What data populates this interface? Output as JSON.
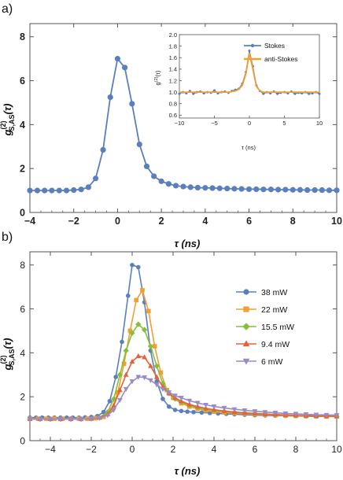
{
  "colors": {
    "blue": "#5b7fbd",
    "orange": "#f0a030",
    "green": "#86bf3a",
    "red": "#e8603a",
    "purple": "#9a8ac6",
    "axis": "#555555"
  },
  "chart_data": [
    {
      "panel_label": "a)",
      "type": "line",
      "xlabel": "τ (ns)",
      "ylabel": "g(2)S,AS(τ)",
      "xlim": [
        -4,
        10
      ],
      "ylim": [
        0,
        8.6
      ],
      "xticks": [
        -4,
        -2,
        0,
        2,
        4,
        6,
        8,
        10
      ],
      "yticks": [
        0,
        2,
        4,
        6,
        8
      ],
      "grid": false,
      "series": [
        {
          "marker": "circle",
          "color": "#5b7fbd",
          "x": [
            -4,
            -3.66,
            -3.33,
            -3,
            -2.66,
            -2.33,
            -2,
            -1.66,
            -1.33,
            -1,
            -0.66,
            -0.33,
            0,
            0.33,
            0.66,
            1,
            1.33,
            1.66,
            2,
            2.33,
            2.66,
            3,
            3.33,
            3.66,
            4,
            4.33,
            4.66,
            5,
            5.33,
            5.66,
            6,
            6.33,
            6.66,
            7,
            7.33,
            7.66,
            8,
            8.33,
            8.66,
            9,
            9.33,
            9.66,
            10
          ],
          "y": [
            1.0,
            1.0,
            1.0,
            1.0,
            1.0,
            1.0,
            1.02,
            1.05,
            1.15,
            1.55,
            2.85,
            5.25,
            7.0,
            6.6,
            4.95,
            3.1,
            2.1,
            1.65,
            1.42,
            1.3,
            1.22,
            1.18,
            1.15,
            1.13,
            1.12,
            1.11,
            1.1,
            1.09,
            1.08,
            1.07,
            1.06,
            1.06,
            1.05,
            1.05,
            1.04,
            1.04,
            1.03,
            1.03,
            1.02,
            1.02,
            1.02,
            1.01,
            1.01
          ]
        }
      ],
      "inset": {
        "type": "line",
        "xlabel": "τ (ns)",
        "ylabel": "g(2)(τ)",
        "xlim": [
          -10,
          10
        ],
        "ylim": [
          0.55,
          2.0
        ],
        "xticks": [
          -10,
          -5,
          0,
          5,
          10
        ],
        "yticks": [
          0.6,
          0.8,
          1.0,
          1.2,
          1.4,
          1.6,
          1.8,
          2.0
        ],
        "legend_position": "top-right",
        "series": [
          {
            "name": "Stokes",
            "color": "#5b7fbd",
            "marker": "circle",
            "x": [
              -10,
              -9.5,
              -9,
              -8.5,
              -8,
              -7.5,
              -7,
              -6.5,
              -6,
              -5.5,
              -5,
              -4.5,
              -4,
              -3.5,
              -3,
              -2.5,
              -2,
              -1.5,
              -1,
              -0.5,
              0,
              0.5,
              1,
              1.5,
              2,
              2.5,
              3,
              3.5,
              4,
              4.5,
              5,
              5.5,
              6,
              6.5,
              7,
              7.5,
              8,
              8.5,
              9,
              9.5,
              10
            ],
            "y": [
              0.97,
              1.0,
              0.98,
              1.02,
              0.97,
              1.0,
              1.01,
              0.98,
              1.0,
              0.99,
              1.03,
              0.98,
              1.0,
              1.01,
              0.99,
              1.02,
              1.04,
              1.06,
              1.15,
              1.35,
              1.72,
              1.45,
              1.12,
              1.02,
              0.97,
              1.0,
              0.98,
              1.01,
              0.97,
              0.99,
              1.0,
              0.98,
              1.01,
              0.97,
              0.99,
              0.98,
              1.0,
              0.97,
              0.98,
              1.0,
              0.97
            ]
          },
          {
            "name": "anti-Stokes",
            "color": "#f0a030",
            "marker": "none",
            "x": [
              -10,
              -9,
              -8,
              -7,
              -6,
              -5,
              -4,
              -3,
              -2,
              -1.5,
              -1,
              -0.5,
              0,
              0.5,
              1,
              1.5,
              2,
              3,
              4,
              5,
              6,
              7,
              8,
              9,
              10
            ],
            "y": [
              1.0,
              1.0,
              1.0,
              1.0,
              1.0,
              1.0,
              1.0,
              1.0,
              1.02,
              1.05,
              1.12,
              1.32,
              1.68,
              1.4,
              1.1,
              1.02,
              1.0,
              1.0,
              1.0,
              1.0,
              1.0,
              1.0,
              1.0,
              1.0,
              1.0
            ]
          }
        ]
      }
    },
    {
      "panel_label": "b)",
      "type": "line",
      "xlabel": "τ (ns)",
      "ylabel": "g(2)S,AS(τ)",
      "xlim": [
        -5,
        10
      ],
      "ylim": [
        0,
        8.6
      ],
      "xticks": [
        -4,
        -2,
        0,
        2,
        4,
        6,
        8,
        10
      ],
      "yticks": [
        0,
        2,
        4,
        6,
        8
      ],
      "grid": false,
      "legend_position": "right",
      "series": [
        {
          "name": "38 mW",
          "color": "#5b7fbd",
          "marker": "circle",
          "x": [
            -5,
            -4.7,
            -4.4,
            -4.1,
            -3.8,
            -3.5,
            -3.2,
            -2.9,
            -2.6,
            -2.3,
            -2.0,
            -1.7,
            -1.4,
            -1.1,
            -0.8,
            -0.5,
            -0.2,
            0.0,
            0.3,
            0.6,
            0.9,
            1.2,
            1.5,
            1.8,
            2.1,
            2.4,
            2.7,
            3.0,
            3.4,
            3.8,
            4.2,
            4.6,
            5.0,
            5.5,
            6.0,
            6.5,
            7.0,
            7.5,
            8.0,
            8.5,
            9.0,
            9.5,
            10.0
          ],
          "y": [
            1.05,
            1.05,
            1.05,
            1.05,
            1.05,
            1.05,
            1.05,
            1.05,
            1.05,
            1.06,
            1.08,
            1.12,
            1.3,
            1.8,
            2.9,
            4.5,
            6.6,
            8.0,
            7.9,
            6.3,
            4.1,
            2.7,
            1.9,
            1.55,
            1.4,
            1.35,
            1.32,
            1.3,
            1.28,
            1.26,
            1.24,
            1.22,
            1.2,
            1.18,
            1.16,
            1.15,
            1.14,
            1.13,
            1.12,
            1.11,
            1.1,
            1.1,
            1.1
          ]
        },
        {
          "name": "22 mW",
          "color": "#f0a030",
          "marker": "square",
          "x": [
            -5,
            -4.6,
            -4.2,
            -3.8,
            -3.4,
            -3.0,
            -2.6,
            -2.2,
            -1.8,
            -1.4,
            -1.0,
            -0.7,
            -0.4,
            -0.1,
            0.2,
            0.5,
            0.8,
            1.1,
            1.4,
            1.7,
            2.0,
            2.4,
            2.8,
            3.2,
            3.6,
            4.0,
            4.5,
            5.0,
            5.5,
            6.0,
            6.5,
            7.0,
            7.5,
            8.0,
            8.5,
            9.0,
            9.5,
            10.0
          ],
          "y": [
            1.0,
            1.0,
            1.0,
            1.0,
            1.0,
            1.0,
            1.0,
            1.0,
            1.02,
            1.08,
            1.4,
            2.2,
            3.5,
            5.0,
            6.4,
            6.85,
            5.9,
            4.3,
            3.1,
            2.3,
            1.95,
            1.7,
            1.55,
            1.45,
            1.38,
            1.32,
            1.28,
            1.25,
            1.22,
            1.2,
            1.18,
            1.16,
            1.14,
            1.13,
            1.12,
            1.11,
            1.1,
            1.1
          ]
        },
        {
          "name": "15.5 mW",
          "color": "#86bf3a",
          "marker": "diamond",
          "x": [
            -5,
            -4.5,
            -4.0,
            -3.5,
            -3.0,
            -2.5,
            -2.0,
            -1.6,
            -1.2,
            -0.9,
            -0.6,
            -0.3,
            0.0,
            0.3,
            0.6,
            0.9,
            1.2,
            1.5,
            1.8,
            2.1,
            2.4,
            2.8,
            3.2,
            3.6,
            4.0,
            4.5,
            5.0,
            5.5,
            6.0,
            6.5,
            7.0,
            7.5,
            8.0,
            8.5,
            9.0,
            9.5,
            10.0
          ],
          "y": [
            0.98,
            0.98,
            0.98,
            0.98,
            0.98,
            0.98,
            1.0,
            1.05,
            1.3,
            1.9,
            3.0,
            4.1,
            4.9,
            5.3,
            5.05,
            4.3,
            3.4,
            2.6,
            2.15,
            1.9,
            1.75,
            1.6,
            1.5,
            1.43,
            1.38,
            1.33,
            1.28,
            1.25,
            1.22,
            1.2,
            1.18,
            1.16,
            1.14,
            1.13,
            1.12,
            1.11,
            1.1
          ]
        },
        {
          "name": "9.4 mW",
          "color": "#e8603a",
          "marker": "triangle-up",
          "x": [
            -5,
            -4.5,
            -4.0,
            -3.5,
            -3.0,
            -2.5,
            -2.0,
            -1.6,
            -1.2,
            -0.9,
            -0.6,
            -0.3,
            0.0,
            0.3,
            0.6,
            0.9,
            1.2,
            1.5,
            1.8,
            2.1,
            2.4,
            2.8,
            3.2,
            3.6,
            4.0,
            4.5,
            5.0,
            5.5,
            6.0,
            6.5,
            7.0,
            7.5,
            8.0,
            8.5,
            9.0,
            9.5,
            10.0
          ],
          "y": [
            0.98,
            0.98,
            0.98,
            0.98,
            0.98,
            0.98,
            1.0,
            1.04,
            1.2,
            1.6,
            2.3,
            3.0,
            3.6,
            3.85,
            3.8,
            3.4,
            2.9,
            2.45,
            2.15,
            1.95,
            1.8,
            1.65,
            1.55,
            1.47,
            1.41,
            1.35,
            1.3,
            1.27,
            1.24,
            1.21,
            1.19,
            1.17,
            1.15,
            1.14,
            1.13,
            1.12,
            1.11
          ]
        },
        {
          "name": "6 mW",
          "color": "#9a8ac6",
          "marker": "triangle-down",
          "x": [
            -5,
            -4.5,
            -4.0,
            -3.5,
            -3.0,
            -2.5,
            -2.0,
            -1.6,
            -1.2,
            -0.9,
            -0.6,
            -0.3,
            0.0,
            0.3,
            0.6,
            0.9,
            1.2,
            1.5,
            1.8,
            2.1,
            2.4,
            2.8,
            3.2,
            3.6,
            4.0,
            4.5,
            5.0,
            5.5,
            6.0,
            6.5,
            7.0,
            7.5,
            8.0,
            8.5,
            9.0,
            9.5,
            10.0
          ],
          "y": [
            0.98,
            0.98,
            0.98,
            0.98,
            0.98,
            0.98,
            1.0,
            1.03,
            1.15,
            1.4,
            1.85,
            2.35,
            2.7,
            2.9,
            2.88,
            2.75,
            2.55,
            2.35,
            2.2,
            2.05,
            1.95,
            1.82,
            1.72,
            1.63,
            1.56,
            1.49,
            1.43,
            1.38,
            1.34,
            1.3,
            1.27,
            1.24,
            1.22,
            1.2,
            1.18,
            1.17,
            1.16
          ]
        }
      ]
    }
  ]
}
